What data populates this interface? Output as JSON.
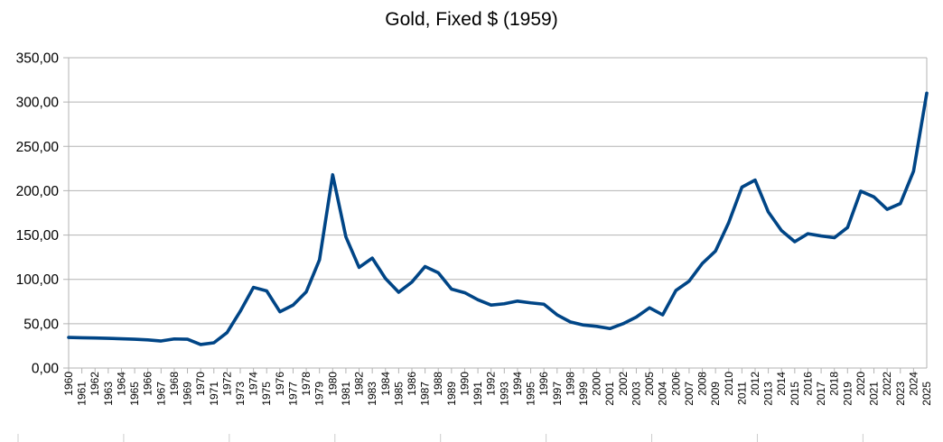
{
  "chart_data": {
    "type": "line",
    "title": "Gold, Fixed $ (1959)",
    "xlabel": "",
    "ylabel": "",
    "ylim": [
      0,
      350
    ],
    "yticks": [
      "0,00",
      "50,00",
      "100,00",
      "150,00",
      "200,00",
      "250,00",
      "300,00",
      "350,00"
    ],
    "grid": true,
    "legend": "none",
    "line_color": "#004586",
    "categories": [
      "1960",
      "1961",
      "1962",
      "1963",
      "1964",
      "1965",
      "1966",
      "1967",
      "1968",
      "1969",
      "1970",
      "1971",
      "1972",
      "1973",
      "1974",
      "1975",
      "1976",
      "1977",
      "1978",
      "1979",
      "1980",
      "1981",
      "1982",
      "1983",
      "1984",
      "1985",
      "1986",
      "1987",
      "1988",
      "1989",
      "1990",
      "1991",
      "1992",
      "1993",
      "1994",
      "1995",
      "1996",
      "1997",
      "1998",
      "1999",
      "2000",
      "2001",
      "2002",
      "2003",
      "2005",
      "2004",
      "2006",
      "2007",
      "2008",
      "2009",
      "2010",
      "2011",
      "2012",
      "2013",
      "2014",
      "2015",
      "2016",
      "2017",
      "2018",
      "2019",
      "2020",
      "2021",
      "2022",
      "2023",
      "2024",
      "2025"
    ],
    "values": [
      34.5,
      34.2,
      33.9,
      33.5,
      33.0,
      32.5,
      31.7,
      30.5,
      32.8,
      32.5,
      26.5,
      28.5,
      40.0,
      64.0,
      91.0,
      87.0,
      63.5,
      71.0,
      86.0,
      122.0,
      218.0,
      148.0,
      113.5,
      124.0,
      101.0,
      85.5,
      97.0,
      114.5,
      107.5,
      89.0,
      85.0,
      77.0,
      71.0,
      72.5,
      75.5,
      73.5,
      72.0,
      60.0,
      52.0,
      48.5,
      47.0,
      44.5,
      50.0,
      57.5,
      68.0,
      60.0,
      87.5,
      98.0,
      118.0,
      132.0,
      164.0,
      204.0,
      212.0,
      176.0,
      155.0,
      142.5,
      151.5,
      149.0,
      147.0,
      158.5,
      199.5,
      193.0,
      179.0,
      185.5,
      222.0,
      310.0
    ]
  }
}
